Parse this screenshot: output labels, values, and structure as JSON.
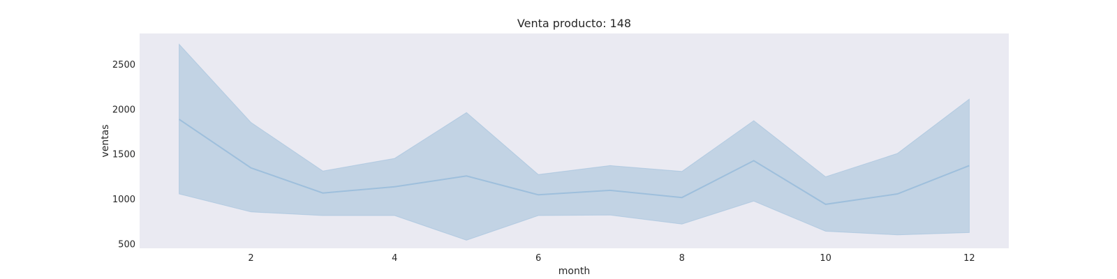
{
  "chart_data": {
    "type": "line",
    "title": "Venta producto: 148",
    "xlabel": "month",
    "ylabel": "ventas",
    "x": [
      1,
      2,
      3,
      4,
      5,
      6,
      7,
      8,
      9,
      10,
      11,
      12
    ],
    "series": [
      {
        "name": "",
        "values": [
          1885,
          1345,
          1065,
          1135,
          1255,
          1045,
          1095,
          1015,
          1425,
          940,
          1055,
          1370
        ],
        "ci_lower": [
          1055,
          855,
          815,
          815,
          540,
          815,
          820,
          720,
          975,
          640,
          600,
          625
        ],
        "ci_upper": [
          2720,
          1850,
          1310,
          1450,
          1960,
          1270,
          1370,
          1305,
          1870,
          1245,
          1505,
          2110
        ]
      }
    ],
    "xticks": [
      2,
      4,
      6,
      8,
      10,
      12
    ],
    "yticks": [
      500,
      1000,
      1500,
      2000,
      2500
    ],
    "xlim": [
      0.45,
      12.55
    ],
    "ylim": [
      450,
      2840
    ],
    "grid": false,
    "colors": {
      "plot_background": "#eaeaf2",
      "line": "#9ebfdc",
      "band": "#c2d3e4"
    }
  }
}
